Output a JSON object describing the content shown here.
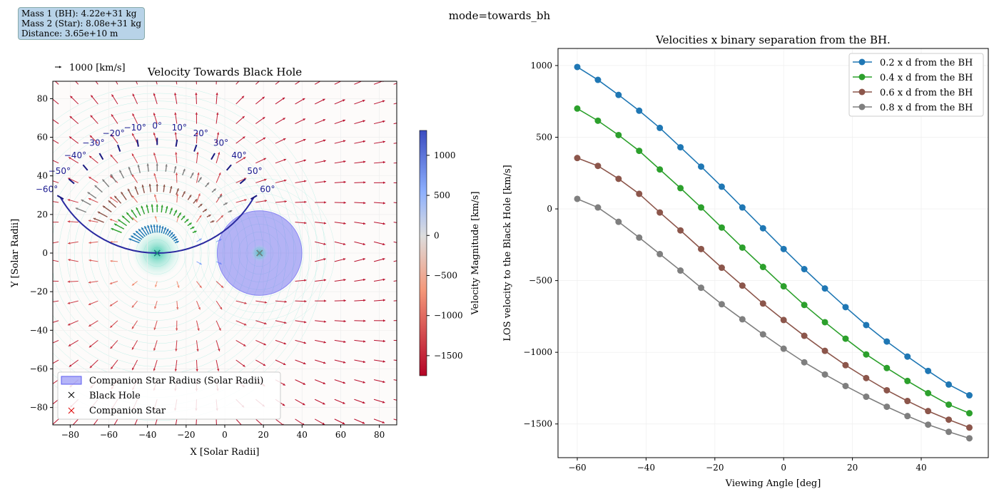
{
  "suptitle": "mode=towards_bh",
  "info": {
    "mass1": "Mass 1 (BH): 4.22e+31 kg",
    "mass2": "Mass 2 (Star): 8.08e+31 kg",
    "distance": "Distance: 3.65e+10 m"
  },
  "chart_data": [
    {
      "type": "quiver",
      "title": "Velocity Towards Black Hole",
      "xlabel": "X [Solar Radii]",
      "ylabel": "Y [Solar Radii]",
      "xlim": [
        -89,
        89
      ],
      "ylim": [
        -89,
        89
      ],
      "xticks": [
        -80,
        -60,
        -40,
        -20,
        0,
        20,
        40,
        60,
        80
      ],
      "yticks": [
        -80,
        -60,
        -40,
        -20,
        0,
        20,
        40,
        60,
        80
      ],
      "quiver_key": "1000 [km/s]",
      "black_hole": [
        -35,
        0
      ],
      "companion_star": [
        18,
        0
      ],
      "companion_radius": 22,
      "arc_radius": 58,
      "arc_labels": [
        "60$^\\circ$",
        "50$^\\circ$",
        "40$^\\circ$",
        "30$^\\circ$",
        "20$^\\circ$",
        "10$^\\circ$",
        "0$^\\circ$",
        "−10$^\\circ$",
        "−20$^\\circ$",
        "−30$^\\circ$",
        "−40$^\\circ$",
        "−50$^\\circ$",
        "−60$^\\circ$"
      ],
      "arc_angles": [
        60,
        50,
        40,
        30,
        20,
        10,
        0,
        -10,
        -20,
        -30,
        -40,
        -50,
        -60
      ],
      "ring_fractions": [
        0.2,
        0.4,
        0.6,
        0.8
      ],
      "ring_colors": [
        "#1f77b4",
        "#2ca02c",
        "#8c564b",
        "#7f7f7f"
      ],
      "legend": [
        "Companion Star Radius (Solar Radii)",
        "Black Hole",
        "Companion Star"
      ],
      "legend_placement": "lower-left",
      "colorbar": {
        "label": "Velocity Magnitude [km/s]",
        "ticks": [
          1000,
          500,
          0,
          -500,
          -1000,
          -1500
        ],
        "range": [
          -1750,
          1310
        ],
        "colormap": "coolwarm_r"
      }
    },
    {
      "type": "line",
      "title": "Velocities  x binary separation from the BH.",
      "xlabel": "Viewing Angle [deg]",
      "ylabel": "LOS velocity to the Black Hole [km/s]",
      "xlim": [
        -65.6,
        59.5
      ],
      "ylim": [
        -1735,
        1119
      ],
      "xticks": [
        -60,
        -40,
        -20,
        0,
        20,
        40
      ],
      "yticks": [
        1000,
        500,
        0,
        -500,
        -1000,
        -1500
      ],
      "grid": true,
      "legend_placement": "top-right",
      "x": [
        -60,
        -54,
        -48,
        -42,
        -36,
        -30,
        -24,
        -18,
        -12,
        -6,
        0,
        6,
        12,
        18,
        24,
        30,
        36,
        42,
        48,
        54
      ],
      "series": [
        {
          "name": "0.2 x d from the BH",
          "color": "#1f77b4",
          "values": [
            990,
            900,
            795,
            685,
            565,
            430,
            295,
            155,
            10,
            -135,
            -280,
            -420,
            -555,
            -685,
            -810,
            -925,
            -1030,
            -1130,
            -1225,
            -1300
          ]
        },
        {
          "name": "0.4 x d from the BH",
          "color": "#2ca02c",
          "values": [
            700,
            615,
            515,
            405,
            275,
            145,
            10,
            -130,
            -270,
            -405,
            -540,
            -670,
            -790,
            -905,
            -1015,
            -1110,
            -1200,
            -1285,
            -1365,
            -1425
          ]
        },
        {
          "name": "0.6 x d from the BH",
          "color": "#8c564b",
          "values": [
            355,
            300,
            210,
            105,
            -25,
            -150,
            -280,
            -410,
            -535,
            -660,
            -775,
            -885,
            -990,
            -1090,
            -1180,
            -1265,
            -1340,
            -1410,
            -1470,
            -1525
          ]
        },
        {
          "name": "0.8 x d from the BH",
          "color": "#7f7f7f",
          "values": [
            70,
            10,
            -90,
            -200,
            -315,
            -430,
            -550,
            -665,
            -770,
            -875,
            -975,
            -1070,
            -1155,
            -1235,
            -1310,
            -1380,
            -1445,
            -1505,
            -1555,
            -1600
          ]
        }
      ]
    }
  ]
}
